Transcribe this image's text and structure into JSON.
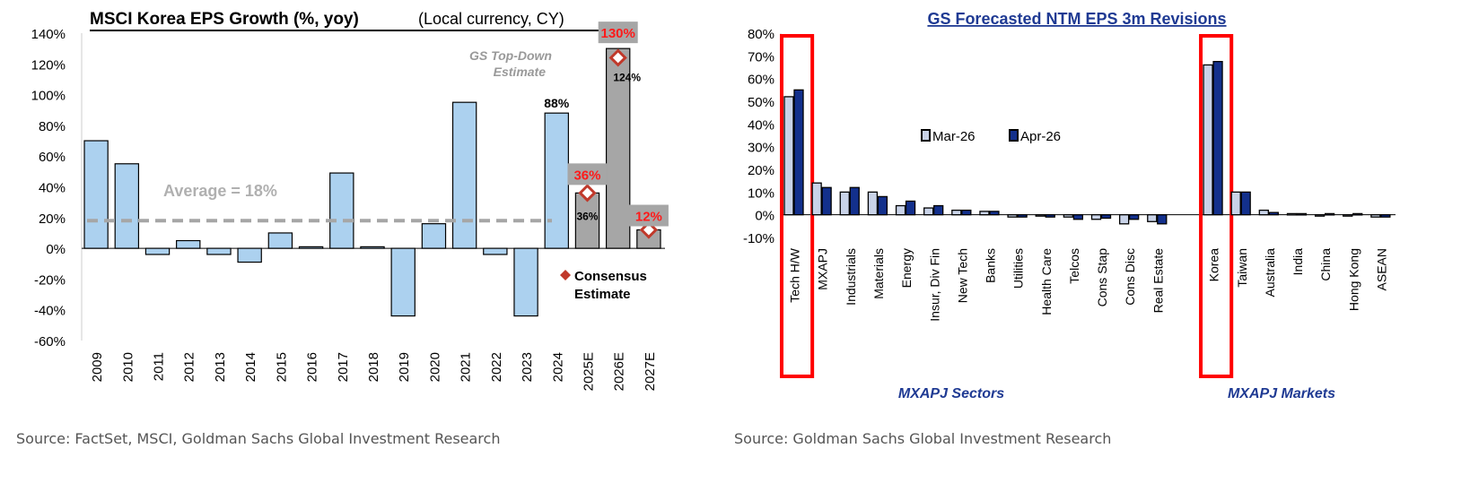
{
  "chart_data": [
    {
      "type": "bar",
      "title": "MSCI Korea EPS Growth (%, yoy)",
      "subtitle": "(Local currency,  CY)",
      "categories": [
        "2009",
        "2010",
        "2011",
        "2012",
        "2013",
        "2014",
        "2015",
        "2016",
        "2017",
        "2018",
        "2019",
        "2020",
        "2021",
        "2022",
        "2023",
        "2024",
        "2025E",
        "2026E",
        "2027E"
      ],
      "values": [
        70,
        55,
        -4,
        5,
        -4,
        -9,
        10,
        1,
        49,
        1,
        -44,
        16,
        95,
        -4,
        -44,
        88,
        36,
        130,
        12
      ],
      "estimate_categories": [
        "2025E",
        "2026E",
        "2027E"
      ],
      "consensus": {
        "2025E": 36,
        "2026E": 124,
        "2027E": 12
      },
      "ylim": [
        -60,
        140
      ],
      "yticks": [
        -60,
        -40,
        -20,
        0,
        20,
        40,
        60,
        80,
        100,
        120,
        140
      ],
      "average": 18,
      "annotations": {
        "average": "Average = 18%",
        "gs": "GS Top-Down Estimate",
        "consensus": "Consensus Estimate",
        "l2024": "88%",
        "l2025": "36%",
        "l2026": "130%",
        "l2027": "12%",
        "c2025": "36%",
        "c2026": "124%"
      },
      "colors": {
        "historic": "#acd1ef",
        "estimate": "#a6a6a6",
        "consensus": "#c0392b",
        "gs_label": "#ff1a1a"
      }
    },
    {
      "type": "bar",
      "title": "GS Forecasted NTM EPS 3m Revisions",
      "categories": [
        "Tech H/W",
        "MXAPJ",
        "Industrials",
        "Materials",
        "Energy",
        "Insur, Div Fin",
        "New Tech",
        "Banks",
        "Utilities",
        "Health Care",
        "Telcos",
        "Cons Stap",
        "Cons Disc",
        "Real Estate",
        "Korea",
        "Taiwan",
        "Australia",
        "India",
        "China",
        "Hong Kong",
        "ASEAN"
      ],
      "series": [
        {
          "name": "Mar-26",
          "color": "#c9d3e8",
          "values": [
            52,
            14,
            10,
            10,
            4,
            3,
            2,
            1.5,
            -1,
            -0.5,
            -1,
            -2,
            -4,
            -3,
            66,
            10,
            2,
            0.5,
            -0.5,
            -0.5,
            -1
          ]
        },
        {
          "name": "Apr-26",
          "color": "#13308c",
          "values": [
            55,
            12,
            12,
            8,
            6,
            4,
            2,
            1.5,
            -1,
            -1,
            -2,
            -1.5,
            -2,
            -4,
            67.5,
            10,
            1,
            0.5,
            0.5,
            0.5,
            -1
          ]
        }
      ],
      "groups": [
        {
          "label": "MXAPJ Sectors",
          "count": 14
        },
        {
          "label": "MXAPJ Markets",
          "count": 7
        }
      ],
      "highlighted": [
        "Tech H/W",
        "Korea"
      ],
      "ylim": [
        -10,
        80
      ],
      "yticks": [
        -10,
        0,
        10,
        20,
        30,
        40,
        50,
        60,
        70,
        80
      ],
      "legend": "center"
    }
  ],
  "sources": [
    "Source: FactSet, MSCI, Goldman Sachs Global Investment Research",
    "Source: Goldman Sachs Global Investment Research"
  ]
}
